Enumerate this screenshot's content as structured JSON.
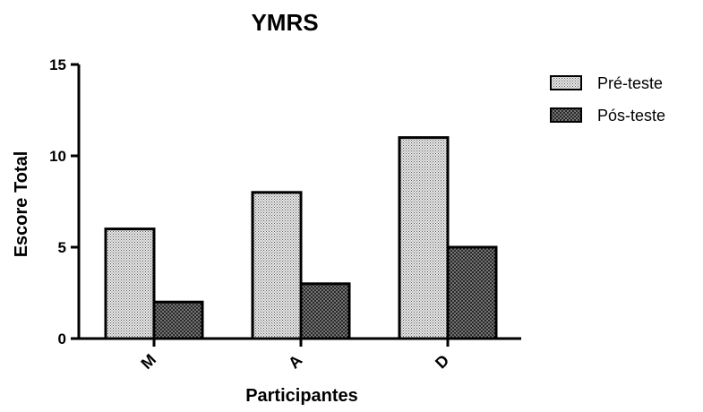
{
  "chart_data": {
    "type": "bar",
    "title": "YMRS",
    "xlabel": "Participantes",
    "ylabel": "Escore Total",
    "categories": [
      "M",
      "A",
      "D"
    ],
    "series": [
      {
        "name": "Pré-teste",
        "values": [
          6,
          8,
          11
        ],
        "pattern": "fine-dots"
      },
      {
        "name": "Pós-teste",
        "values": [
          2,
          3,
          5
        ],
        "pattern": "crosshatch"
      }
    ],
    "ylim": [
      0,
      15
    ],
    "yticks": [
      "0",
      "5",
      "10",
      "15"
    ],
    "grid": false,
    "legend_position": "top-right",
    "colors": {
      "axis": "#000000",
      "pre_fill": "#e6e6e6",
      "post_fill": "#6e6e6e"
    }
  }
}
